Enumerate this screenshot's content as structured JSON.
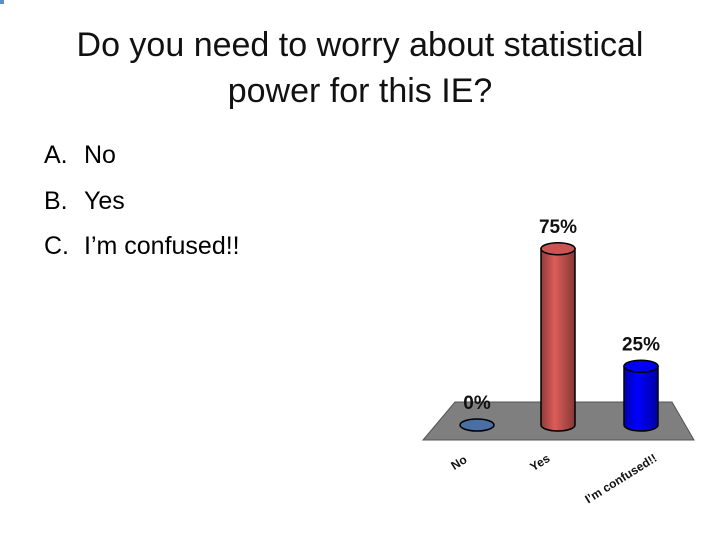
{
  "slide": {
    "title_lines": [
      "Do you need to worry about statistical",
      "power for this IE?"
    ],
    "options": [
      {
        "letter": "A.",
        "text": "No"
      },
      {
        "letter": "B.",
        "text": "Yes"
      },
      {
        "letter": "C.",
        "text": "I’m confused!!"
      }
    ]
  },
  "chart_data": {
    "type": "bar",
    "style": "3d-cylinder",
    "title": "",
    "xlabel": "",
    "ylabel": "",
    "categories": [
      "No",
      "Yes",
      "I’m confused!!"
    ],
    "values": [
      0,
      75,
      25
    ],
    "value_labels": [
      "0%",
      "75%",
      "25%"
    ],
    "ylim": [
      0,
      100
    ],
    "grid": false,
    "legend": "none",
    "colors": [
      "#4a6fa5",
      "#c0504d",
      "#0000e6"
    ],
    "floor_color": "#7f7f7f"
  }
}
